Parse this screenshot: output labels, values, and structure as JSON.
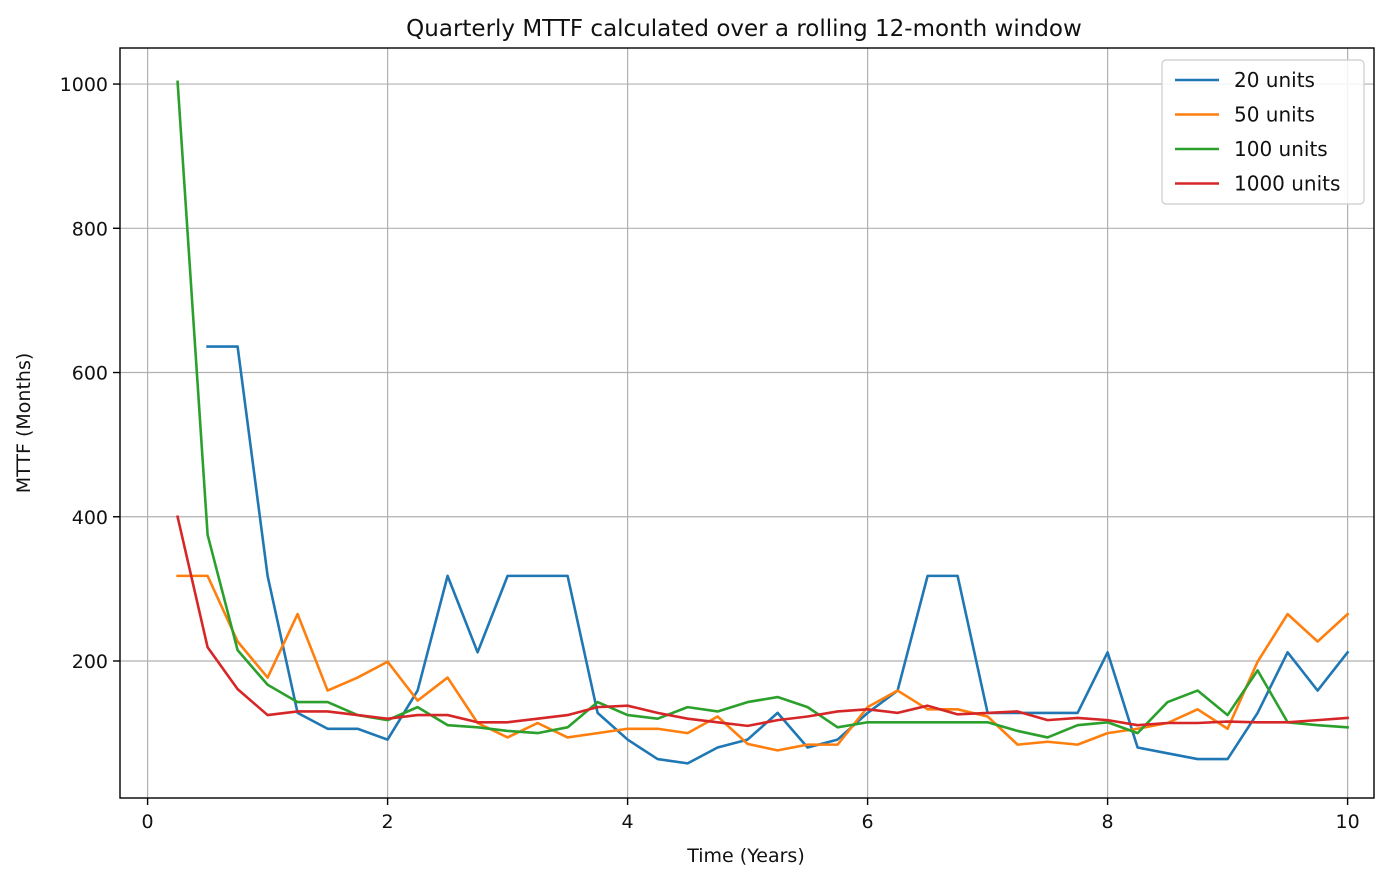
{
  "chart_data": {
    "type": "line",
    "title": "Quarterly MTTF calculated over a rolling 12-month window",
    "xlabel": "Time (Years)",
    "ylabel": "MTTF (Months)",
    "xlim": [
      -0.23,
      10.22
    ],
    "ylim": [
      10,
      1050
    ],
    "xticks": [
      0,
      2,
      4,
      6,
      8,
      10
    ],
    "xtick_labels": [
      "0",
      "2",
      "4",
      "6",
      "8",
      "10"
    ],
    "yticks": [
      200,
      400,
      600,
      800,
      1000
    ],
    "ytick_labels": [
      "200",
      "400",
      "600",
      "800",
      "1000"
    ],
    "grid": true,
    "legend_position": "top-right",
    "colors": {
      "20 units": "#1f77b4",
      "50 units": "#ff7f0e",
      "100 units": "#2ca02c",
      "1000 units": "#d62728"
    },
    "series": [
      {
        "name": "20 units",
        "color": "#1f77b4",
        "x": [
          0.5,
          0.75,
          1.0,
          1.25,
          1.5,
          1.75,
          2.0,
          2.25,
          2.5,
          2.75,
          3.0,
          3.25,
          3.5,
          3.75,
          4.0,
          4.25,
          4.5,
          4.75,
          5.0,
          5.25,
          5.5,
          5.75,
          6.0,
          6.25,
          6.5,
          6.75,
          7.0,
          7.25,
          7.5,
          7.75,
          8.0,
          8.25,
          8.5,
          8.75,
          9.0,
          9.25,
          9.5,
          9.75,
          10.0
        ],
        "y": [
          636,
          636,
          318,
          128,
          106,
          106,
          91,
          159,
          318,
          212,
          318,
          318,
          318,
          128,
          91,
          64,
          58,
          80,
          91,
          128,
          80,
          91,
          128,
          159,
          318,
          318,
          128,
          128,
          128,
          128,
          212,
          80,
          72,
          64,
          64,
          128,
          212,
          159,
          212
        ]
      },
      {
        "name": "50 units",
        "color": "#ff7f0e",
        "x": [
          0.25,
          0.5,
          0.75,
          1.0,
          1.25,
          1.5,
          1.75,
          2.0,
          2.25,
          2.5,
          2.75,
          3.0,
          3.25,
          3.5,
          3.75,
          4.0,
          4.25,
          4.5,
          4.75,
          5.0,
          5.25,
          5.5,
          5.75,
          6.0,
          6.25,
          6.5,
          6.75,
          7.0,
          7.25,
          7.5,
          7.75,
          8.0,
          8.25,
          8.5,
          8.75,
          9.0,
          9.25,
          9.5,
          9.75,
          10.0
        ],
        "y": [
          318,
          318,
          227,
          177,
          265,
          159,
          177,
          199,
          145,
          177,
          114,
          94,
          114,
          94,
          100,
          106,
          106,
          100,
          123,
          85,
          76,
          84,
          84,
          136,
          159,
          133,
          133,
          123,
          84,
          88,
          84,
          100,
          106,
          114,
          133,
          106,
          199,
          265,
          227,
          265
        ]
      },
      {
        "name": "100 units",
        "color": "#2ca02c",
        "x": [
          0.25,
          0.5,
          0.75,
          1.0,
          1.25,
          1.5,
          1.75,
          2.0,
          2.25,
          2.5,
          2.75,
          3.0,
          3.25,
          3.5,
          3.75,
          4.0,
          4.25,
          4.5,
          4.75,
          5.0,
          5.25,
          5.5,
          5.75,
          6.0,
          6.25,
          6.5,
          6.75,
          7.0,
          7.25,
          7.5,
          7.75,
          8.0,
          8.25,
          8.5,
          8.75,
          9.0,
          9.25,
          9.5,
          9.75,
          10.0
        ],
        "y": [
          1003,
          375,
          215,
          167,
          143,
          143,
          125,
          118,
          136,
          111,
          108,
          103,
          100,
          108,
          143,
          125,
          120,
          136,
          130,
          143,
          150,
          136,
          108,
          115,
          115,
          115,
          115,
          115,
          103,
          94,
          111,
          115,
          100,
          143,
          159,
          125,
          187,
          115,
          111,
          108
        ]
      },
      {
        "name": "1000 units",
        "color": "#d62728",
        "x": [
          0.25,
          0.5,
          0.75,
          1.0,
          1.25,
          1.5,
          1.75,
          2.0,
          2.25,
          2.5,
          2.75,
          3.0,
          3.25,
          3.5,
          3.75,
          4.0,
          4.25,
          4.5,
          4.75,
          5.0,
          5.25,
          5.5,
          5.75,
          6.0,
          6.25,
          6.5,
          6.75,
          7.0,
          7.25,
          7.5,
          7.75,
          8.0,
          8.25,
          8.5,
          8.75,
          9.0,
          9.25,
          9.5,
          9.75,
          10.0
        ],
        "y": [
          400,
          219,
          161,
          125,
          130,
          130,
          125,
          120,
          125,
          125,
          115,
          115,
          120,
          125,
          136,
          138,
          128,
          120,
          115,
          110,
          118,
          123,
          130,
          133,
          128,
          138,
          126,
          128,
          130,
          118,
          121,
          118,
          111,
          114,
          114,
          116,
          115,
          115,
          118,
          121
        ]
      }
    ]
  }
}
